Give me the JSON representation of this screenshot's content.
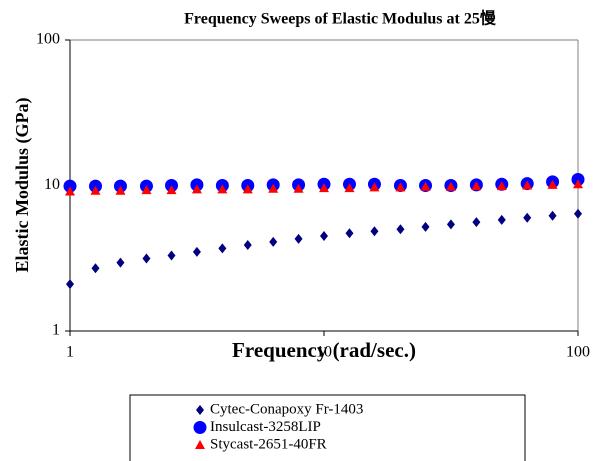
{
  "chart_data": {
    "type": "scatter",
    "title": "Frequency Sweeps of Elastic Modulus at 25慢",
    "x_label": "Frequency (rad/sec.)",
    "y_label": "Elastic Modulus (GPa)",
    "xscale": "log",
    "yscale": "log",
    "xlim": [
      1,
      100
    ],
    "ylim": [
      1,
      100
    ],
    "xticks": [
      1,
      10,
      100
    ],
    "yticks": [
      1,
      10,
      100
    ],
    "grid": false,
    "legend": "bottom",
    "x": [
      1,
      1.26,
      1.58,
      2,
      2.51,
      3.16,
      3.98,
      5.01,
      6.31,
      7.94,
      10,
      12.6,
      15.8,
      20,
      25.1,
      31.6,
      39.8,
      50.1,
      63.1,
      79.4,
      100
    ],
    "series": [
      {
        "name": "Cytec-Conapoxy Fr-1403",
        "color": "#000080",
        "marker": "diamond",
        "values": [
          2.1,
          2.7,
          2.95,
          3.15,
          3.3,
          3.5,
          3.7,
          3.9,
          4.1,
          4.3,
          4.5,
          4.7,
          4.85,
          5.0,
          5.2,
          5.4,
          5.6,
          5.8,
          6.0,
          6.2,
          6.4
        ]
      },
      {
        "name": "Insulcast-3258LIP",
        "color": "#0000ff",
        "marker": "circle",
        "values": [
          9.9,
          9.9,
          9.9,
          9.9,
          10,
          10.1,
          10,
          10,
          10.1,
          10.1,
          10.2,
          10.2,
          10.2,
          10,
          10,
          10,
          10.1,
          10.2,
          10.3,
          10.6,
          11
        ]
      },
      {
        "name": "Stycast-2651-40FR",
        "color": "#ff0000",
        "marker": "triangle",
        "values": [
          9.1,
          9.2,
          9.2,
          9.3,
          9.3,
          9.4,
          9.4,
          9.4,
          9.5,
          9.5,
          9.6,
          9.6,
          9.7,
          9.7,
          9.8,
          9.8,
          9.9,
          9.9,
          10,
          10.1,
          10.2
        ]
      }
    ]
  }
}
